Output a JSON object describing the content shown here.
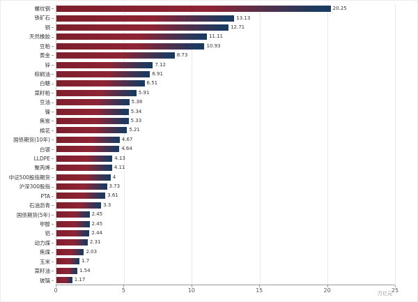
{
  "chart_data": {
    "type": "bar",
    "orientation": "horizontal",
    "title": "",
    "xlabel": "万亿元",
    "ylabel": "",
    "xlim": [
      0,
      25
    ],
    "x_ticks": [
      0,
      5,
      10,
      15,
      20,
      25
    ],
    "grid": true,
    "legend": "none",
    "categories": [
      "螺纹钢",
      "铁矿石",
      "铜",
      "天然橡胶",
      "豆粕",
      "黄金",
      "锌",
      "棕榈油",
      "白糖",
      "菜籽粕",
      "豆油",
      "镍",
      "焦炭",
      "棉花",
      "国债期货(10年)",
      "白银",
      "LLDPE",
      "聚丙烯",
      "中证500股指期货",
      "沪深300股指",
      "PTA",
      "石油沥青",
      "国债期货(5年)",
      "甲醇",
      "铝",
      "动力煤",
      "焦煤",
      "玉米",
      "菜籽油",
      "玻璃"
    ],
    "values": [
      20.25,
      13.13,
      12.71,
      11.11,
      10.93,
      8.73,
      7.12,
      6.91,
      6.51,
      5.91,
      5.38,
      5.34,
      5.33,
      5.21,
      4.67,
      4.64,
      4.13,
      4.11,
      4,
      3.73,
      3.61,
      3.3,
      2.45,
      2.45,
      2.44,
      2.31,
      2.03,
      1.7,
      1.54,
      1.17
    ],
    "value_labels": [
      "20.25",
      "13.13",
      "12.71",
      "11.11",
      "10.93",
      "8.73",
      "7.12",
      "6.91",
      "6.51",
      "5.91",
      "5.38",
      "5.34",
      "5.33",
      "5.21",
      "4.67",
      "4.64",
      "4.13",
      "4.11",
      "4",
      "3.73",
      "3.61",
      "3.3",
      "2.45",
      "2.45",
      "2.44",
      "2.31",
      "2.03",
      "1.7",
      "1.54",
      "1.17"
    ],
    "colors": {
      "bar_start": "#7e1f2d",
      "bar_mid": "#8e2434",
      "bar_end": "#1c3a5f",
      "grid": "#e8e8e8",
      "axis": "#999999",
      "tick_text": "#555555",
      "label_text": "#333333"
    }
  }
}
